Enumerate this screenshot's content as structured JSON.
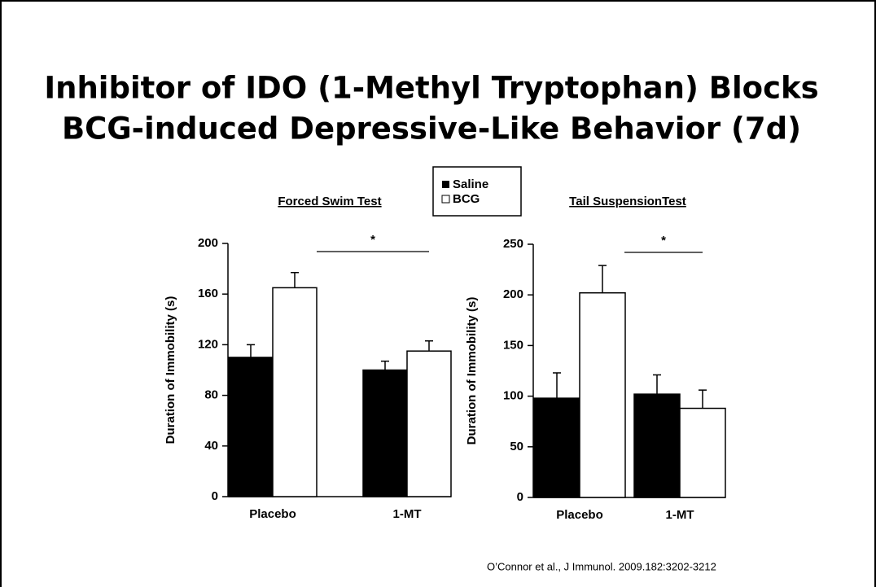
{
  "title_lines": [
    "Inhibitor of IDO (1-Methyl Tryptophan) Blocks",
    "BCG-induced Depressive-Like Behavior (7d)"
  ],
  "citation": "O’Connor et al., J Immunol. 2009.182:3202-3212",
  "chart_data": [
    {
      "type": "bar",
      "title": "Forced Swim Test",
      "ylabel": "Duration of Immobility (s)",
      "categories": [
        "Placebo",
        "1-MT"
      ],
      "series": [
        {
          "name": "Saline",
          "color": "#000000",
          "values": [
            110,
            100
          ],
          "errors": [
            10,
            7
          ]
        },
        {
          "name": "BCG",
          "color": "#ffffff",
          "values": [
            165,
            115
          ],
          "errors": [
            12,
            8
          ]
        }
      ],
      "ylim": [
        0,
        200
      ],
      "yticks": [
        0,
        40,
        80,
        120,
        160,
        200
      ],
      "annotation": "*"
    },
    {
      "type": "bar",
      "title": "Tail SuspensionTest",
      "ylabel": "Duration of Immobility (s)",
      "categories": [
        "Placebo",
        "1-MT"
      ],
      "series": [
        {
          "color": "#000000",
          "values": [
            98,
            102
          ],
          "errors": [
            25,
            19
          ]
        },
        {
          "color": "#ffffff",
          "values": [
            202,
            88
          ],
          "errors": [
            27,
            18
          ]
        }
      ],
      "ylim": [
        0,
        250
      ],
      "yticks": [
        0,
        50,
        100,
        150,
        200,
        250
      ],
      "annotation": "*"
    }
  ]
}
